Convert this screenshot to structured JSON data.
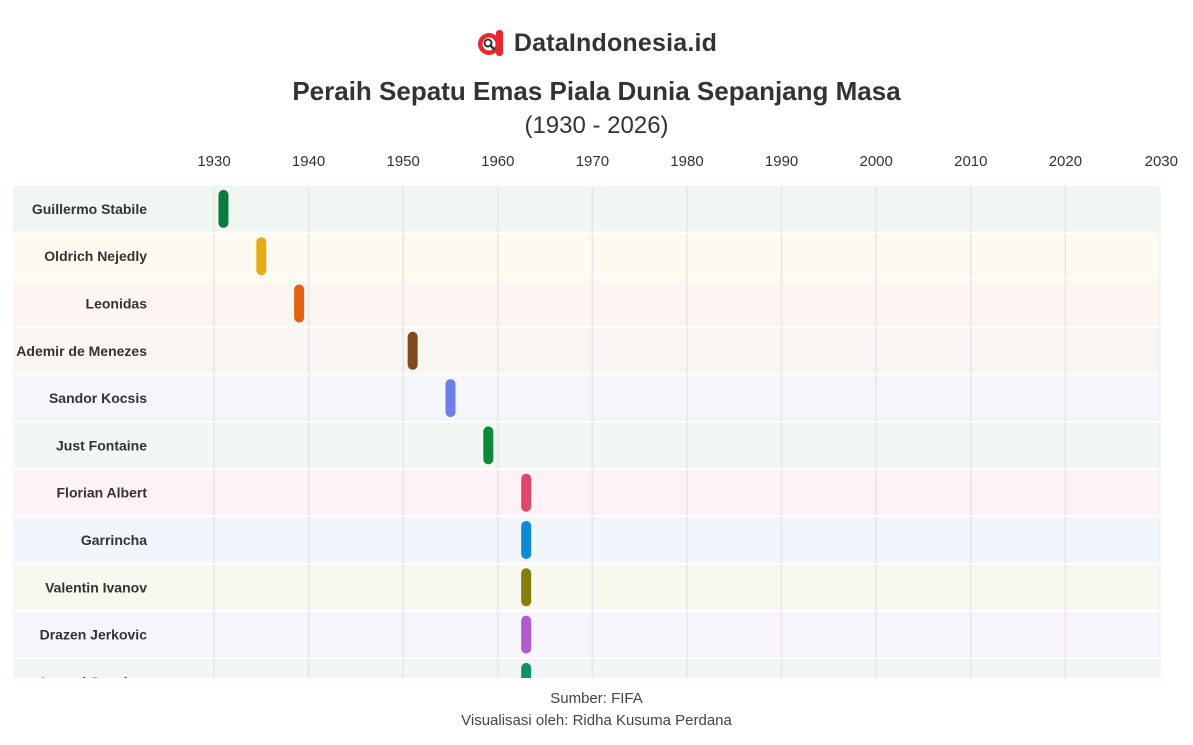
{
  "brand": {
    "name": "DataIndonesia.id",
    "logo_icon": "dataindonesia-logo-icon",
    "colors": {
      "logo_red": "#e8272e",
      "logo_dark": "#333333"
    }
  },
  "header": {
    "title": "Peraih Sepatu Emas Piala Dunia Sepanjang Masa",
    "subtitle": "(1930 - 2026)"
  },
  "footer": {
    "source": "Sumber: FIFA",
    "credit": "Visualisasi oleh: Ridha Kusuma Perdana"
  },
  "chart_data": {
    "type": "timeline",
    "title": "Peraih Sepatu Emas Piala Dunia Sepanjang Masa",
    "subtitle": "(1930 - 2026)",
    "x_axis": {
      "min": 1930,
      "max": 2030,
      "ticks": [
        1930,
        1940,
        1950,
        1960,
        1970,
        1980,
        1990,
        2000,
        2010,
        2020,
        2030
      ],
      "position": "top"
    },
    "grid": true,
    "legend": "none",
    "rows": [
      {
        "name": "Guillermo Stabile",
        "year": 1931,
        "color": "#0b7a3e",
        "band": "#f0f7f3"
      },
      {
        "name": "Oldrich Nejedly",
        "year": 1935,
        "color": "#e6ac17",
        "band": "#fdfbf0"
      },
      {
        "name": "Leonidas",
        "year": 1939,
        "color": "#e5600f",
        "band": "#fdf5f2"
      },
      {
        "name": "Ademir de Menezes",
        "year": 1951,
        "color": "#7e4a1e",
        "band": "#f8f5f2"
      },
      {
        "name": "Sandor Kocsis",
        "year": 1955,
        "color": "#6b7fe6",
        "band": "#f5f6fc"
      },
      {
        "name": "Just Fontaine",
        "year": 1959,
        "color": "#0c8a3a",
        "band": "#f1f7f2"
      },
      {
        "name": "Florian Albert",
        "year": 1963,
        "color": "#e0476b",
        "band": "#fdf3f6"
      },
      {
        "name": "Garrincha",
        "year": 1963,
        "color": "#0a8bd8",
        "band": "#f0f6fb"
      },
      {
        "name": "Valentin Ivanov",
        "year": 1963,
        "color": "#857d0c",
        "band": "#f8f7f0"
      },
      {
        "name": "Drazen Jerkovic",
        "year": 1963,
        "color": "#b05ccc",
        "band": "#f8f4fb"
      },
      {
        "name": "Leonel Sanchez",
        "year": 1963,
        "color": "#119070",
        "band": "#f0f7f4"
      }
    ]
  }
}
